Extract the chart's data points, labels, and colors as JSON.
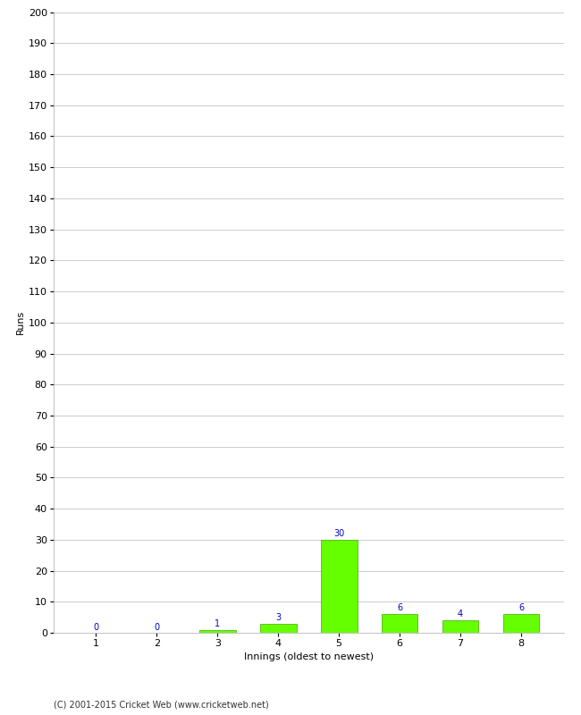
{
  "innings": [
    1,
    2,
    3,
    4,
    5,
    6,
    7,
    8
  ],
  "runs": [
    0,
    0,
    1,
    3,
    30,
    6,
    4,
    6
  ],
  "bar_color": "#66ff00",
  "bar_edge_color": "#44aa00",
  "ylabel": "Runs",
  "xlabel": "Innings (oldest to newest)",
  "yticks": [
    0,
    10,
    20,
    30,
    40,
    50,
    60,
    70,
    80,
    90,
    100,
    110,
    120,
    130,
    140,
    150,
    160,
    170,
    180,
    190,
    200
  ],
  "ylim": [
    0,
    200
  ],
  "background_color": "#ffffff",
  "grid_color": "#cccccc",
  "footer": "(C) 2001-2015 Cricket Web (www.cricketweb.net)",
  "value_label_color": "#0000cc",
  "value_label_fontsize": 7,
  "axis_label_fontsize": 8,
  "tick_fontsize": 8,
  "footer_fontsize": 7
}
